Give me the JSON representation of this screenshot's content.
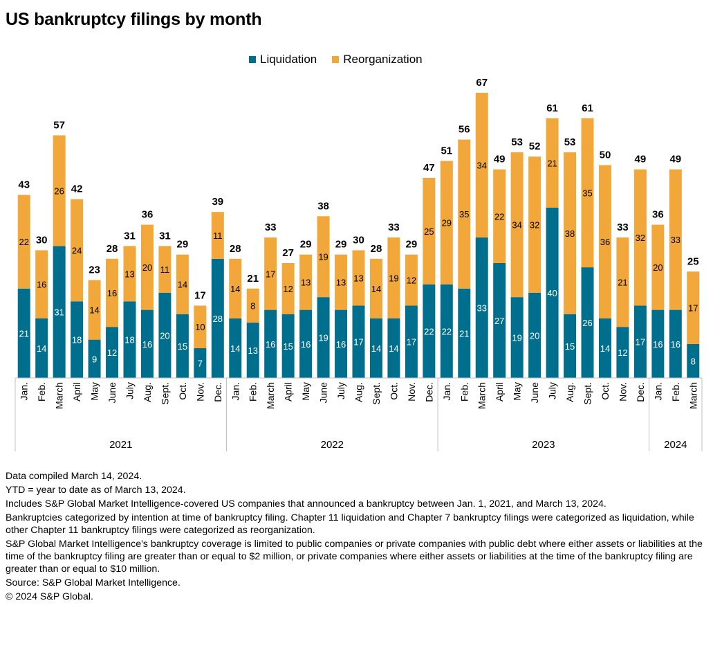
{
  "title": "US bankruptcy filings by month",
  "colors": {
    "liquidation": "#006f8e",
    "reorganization": "#f2a73b",
    "axis": "#bfbfbf"
  },
  "legend": {
    "liquidation": "Liquidation",
    "reorganization": "Reorganization"
  },
  "chart_data": {
    "type": "bar",
    "stacked": true,
    "legend_position": "top",
    "grid": false,
    "ylim": [
      0,
      70
    ],
    "categories": [
      "Jan.",
      "Feb.",
      "March",
      "April",
      "May",
      "June",
      "July",
      "Aug.",
      "Sept.",
      "Oct.",
      "Nov.",
      "Dec.",
      "Jan.",
      "Feb.",
      "March",
      "April",
      "May",
      "June",
      "July",
      "Aug.",
      "Sept.",
      "Oct.",
      "Nov.",
      "Dec.",
      "Jan.",
      "Feb.",
      "March",
      "April",
      "May",
      "June",
      "July",
      "Aug.",
      "Sept.",
      "Oct.",
      "Nov.",
      "Dec.",
      "Jan.",
      "Feb.",
      "March"
    ],
    "groups": [
      {
        "label": "2021",
        "count": 12
      },
      {
        "label": "2022",
        "count": 12
      },
      {
        "label": "2023",
        "count": 12
      },
      {
        "label": "2024",
        "count": 3
      }
    ],
    "series": [
      {
        "name": "Liquidation",
        "values": [
          21,
          14,
          31,
          18,
          9,
          12,
          18,
          16,
          20,
          15,
          7,
          28,
          14,
          13,
          16,
          15,
          16,
          19,
          16,
          17,
          14,
          14,
          17,
          22,
          22,
          21,
          33,
          27,
          19,
          20,
          40,
          15,
          26,
          14,
          12,
          17,
          16,
          16,
          8
        ]
      },
      {
        "name": "Reorganization",
        "values": [
          22,
          16,
          26,
          24,
          14,
          16,
          13,
          20,
          11,
          14,
          10,
          11,
          14,
          8,
          17,
          12,
          13,
          19,
          13,
          13,
          14,
          19,
          12,
          25,
          29,
          35,
          34,
          22,
          34,
          32,
          21,
          38,
          35,
          36,
          21,
          32,
          20,
          33,
          17
        ]
      }
    ],
    "totals": [
      43,
      30,
      57,
      42,
      23,
      28,
      31,
      36,
      31,
      29,
      17,
      39,
      28,
      21,
      33,
      27,
      29,
      38,
      29,
      30,
      28,
      33,
      29,
      47,
      51,
      56,
      67,
      49,
      53,
      52,
      61,
      53,
      61,
      50,
      33,
      49,
      36,
      49,
      25
    ]
  },
  "notes": [
    "Data compiled March 14, 2024.",
    "YTD = year to date as of March 13, 2024.",
    "Includes S&P Global Market Intelligence-covered US companies that announced a bankruptcy between Jan. 1, 2021, and March 13, 2024.",
    "Bankruptcies categorized by intention at time of bankruptcy filing. Chapter 11 liquidation and Chapter 7 bankruptcy filings were categorized as liquidation, while other Chapter 11 bankruptcy filings were categorized as reorganization.",
    "S&P Global Market Intelligence's bankruptcy coverage is limited to public companies or private companies with public debt where either assets or liabilities at the time of the bankruptcy filing are greater than or equal to $2 million, or private companies where either assets or liabilities at the time of the bankruptcy filing are greater than or equal to $10 million.",
    "Source: S&P Global Market Intelligence.",
    "© 2024 S&P Global."
  ]
}
